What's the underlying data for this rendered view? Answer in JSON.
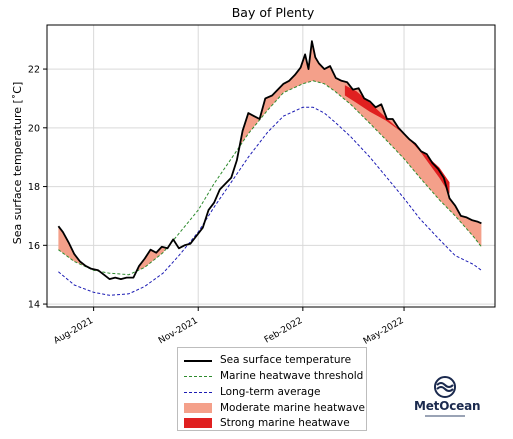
{
  "chart_data": {
    "type": "line",
    "title": "Bay of Plenty",
    "ylabel": "Sea surface temperature [˚C]",
    "xlabel": "",
    "ylim": [
      13.9,
      23.5
    ],
    "xlim": [
      "2021-06-21",
      "2022-07-20"
    ],
    "grid": true,
    "x_ticks": [
      {
        "date": "2021-08-01",
        "label": "Aug-2021"
      },
      {
        "date": "2021-11-01",
        "label": "Nov-2021"
      },
      {
        "date": "2022-02-01",
        "label": "Feb-2022"
      },
      {
        "date": "2022-05-01",
        "label": "May-2022"
      }
    ],
    "y_ticks": [
      14,
      16,
      18,
      20,
      22
    ],
    "series": [
      {
        "name": "Sea surface temperature",
        "style": "solid",
        "color": "#000000",
        "x": [
          "2021-07-01",
          "2021-07-05",
          "2021-07-10",
          "2021-07-15",
          "2021-07-20",
          "2021-07-25",
          "2021-07-30",
          "2021-08-05",
          "2021-08-10",
          "2021-08-15",
          "2021-08-20",
          "2021-08-25",
          "2021-08-30",
          "2021-09-05",
          "2021-09-10",
          "2021-09-15",
          "2021-09-20",
          "2021-09-25",
          "2021-09-30",
          "2021-10-05",
          "2021-10-10",
          "2021-10-15",
          "2021-10-20",
          "2021-10-25",
          "2021-10-30",
          "2021-11-05",
          "2021-11-10",
          "2021-11-15",
          "2021-11-20",
          "2021-11-25",
          "2021-11-30",
          "2021-12-05",
          "2021-12-10",
          "2021-12-15",
          "2021-12-20",
          "2021-12-25",
          "2021-12-30",
          "2022-01-05",
          "2022-01-10",
          "2022-01-15",
          "2022-01-20",
          "2022-01-25",
          "2022-01-30",
          "2022-02-03",
          "2022-02-06",
          "2022-02-09",
          "2022-02-12",
          "2022-02-15",
          "2022-02-20",
          "2022-02-25",
          "2022-03-02",
          "2022-03-07",
          "2022-03-12",
          "2022-03-17",
          "2022-03-22",
          "2022-03-27",
          "2022-04-01",
          "2022-04-06",
          "2022-04-11",
          "2022-04-16",
          "2022-04-21",
          "2022-04-26",
          "2022-05-01",
          "2022-05-06",
          "2022-05-11",
          "2022-05-16",
          "2022-05-21",
          "2022-05-26",
          "2022-05-31",
          "2022-06-05",
          "2022-06-10",
          "2022-06-15",
          "2022-06-20",
          "2022-06-25",
          "2022-06-30",
          "2022-07-05",
          "2022-07-08"
        ],
        "y": [
          16.65,
          16.45,
          16.1,
          15.7,
          15.45,
          15.3,
          15.2,
          15.15,
          15.0,
          14.85,
          14.9,
          14.85,
          14.9,
          14.9,
          15.3,
          15.55,
          15.85,
          15.75,
          15.95,
          15.9,
          16.2,
          15.9,
          16.0,
          16.05,
          16.3,
          16.6,
          17.2,
          17.45,
          17.9,
          18.1,
          18.3,
          18.9,
          19.9,
          20.5,
          20.4,
          20.3,
          21.0,
          21.1,
          21.3,
          21.5,
          21.6,
          21.8,
          22.05,
          22.5,
          22.0,
          22.95,
          22.4,
          22.2,
          22.0,
          22.1,
          21.7,
          21.6,
          21.55,
          21.3,
          21.35,
          21.0,
          20.9,
          20.7,
          20.8,
          20.3,
          20.3,
          20.0,
          19.8,
          19.6,
          19.45,
          19.2,
          19.1,
          18.8,
          18.6,
          18.3,
          17.6,
          17.35,
          17.0,
          16.95,
          16.85,
          16.8,
          16.75
        ]
      },
      {
        "name": "Marine heatwave threshold",
        "style": "dashed",
        "color": "#2e8b2e",
        "x": [
          "2021-07-01",
          "2021-07-15",
          "2021-08-01",
          "2021-08-15",
          "2021-09-01",
          "2021-09-15",
          "2021-10-01",
          "2021-10-15",
          "2021-11-01",
          "2021-11-15",
          "2021-12-01",
          "2021-12-15",
          "2022-01-01",
          "2022-01-15",
          "2022-02-01",
          "2022-02-10",
          "2022-02-20",
          "2022-03-01",
          "2022-03-15",
          "2022-04-01",
          "2022-04-15",
          "2022-05-01",
          "2022-05-15",
          "2022-06-01",
          "2022-06-15",
          "2022-07-01",
          "2022-07-08"
        ],
        "y": [
          15.85,
          15.45,
          15.15,
          15.05,
          15.0,
          15.25,
          15.75,
          16.4,
          17.2,
          18.1,
          19.0,
          19.8,
          20.6,
          21.2,
          21.5,
          21.6,
          21.5,
          21.25,
          20.8,
          20.15,
          19.6,
          18.95,
          18.3,
          17.55,
          17.0,
          16.3,
          15.95
        ]
      },
      {
        "name": "Long-term average",
        "style": "dashed",
        "color": "#1c1cb4",
        "x": [
          "2021-07-01",
          "2021-07-15",
          "2021-08-01",
          "2021-08-15",
          "2021-09-01",
          "2021-09-15",
          "2021-10-01",
          "2021-10-15",
          "2021-11-01",
          "2021-11-15",
          "2021-12-01",
          "2021-12-15",
          "2022-01-01",
          "2022-01-15",
          "2022-02-01",
          "2022-02-10",
          "2022-02-20",
          "2022-03-01",
          "2022-03-15",
          "2022-04-01",
          "2022-04-15",
          "2022-05-01",
          "2022-05-15",
          "2022-06-01",
          "2022-06-15",
          "2022-07-01",
          "2022-07-08"
        ],
        "y": [
          15.1,
          14.65,
          14.4,
          14.3,
          14.35,
          14.6,
          15.05,
          15.65,
          16.45,
          17.3,
          18.2,
          19.0,
          19.85,
          20.4,
          20.7,
          20.7,
          20.5,
          20.2,
          19.7,
          19.0,
          18.35,
          17.6,
          16.9,
          16.2,
          15.65,
          15.35,
          15.15
        ]
      }
    ],
    "shaded": [
      {
        "name": "Moderate marine heatwave",
        "color": "#f4a08a",
        "between": [
          "Marine heatwave threshold",
          "Sea surface temperature"
        ],
        "where": "Sea surface temperature above Marine heatwave threshold"
      },
      {
        "name": "Strong marine heatwave",
        "color": "#e02020",
        "x": [
          "2022-03-10",
          "2022-03-20",
          "2022-04-01",
          "2022-04-15",
          "2022-05-01",
          "2022-05-15",
          "2022-06-01",
          "2022-06-10"
        ],
        "lower": [
          21.1,
          20.85,
          20.55,
          20.25,
          19.8,
          19.2,
          18.3,
          17.75
        ],
        "upper": [
          21.45,
          21.25,
          20.85,
          20.35,
          19.8,
          19.25,
          18.65,
          18.15
        ]
      }
    ],
    "legend": {
      "placement": "below",
      "entries": [
        "Sea surface temperature",
        "Marine heatwave threshold",
        "Long-term average",
        "Moderate marine heatwave",
        "Strong marine heatwave"
      ]
    }
  },
  "colors": {
    "sst": "#000000",
    "threshold": "#2e8b2e",
    "average": "#1c1cb4",
    "moderate": "#f4a08a",
    "strong": "#e02020",
    "grid": "#d9d9d9"
  },
  "logo": {
    "text": "MetOcean",
    "icon": "metocean-wave-logo"
  }
}
